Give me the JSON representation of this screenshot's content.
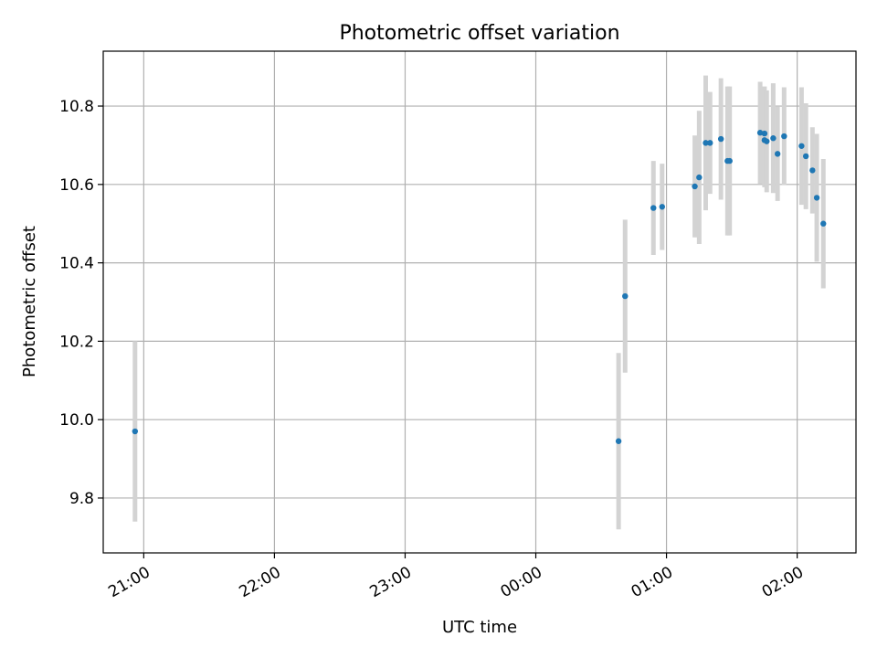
{
  "chart_data": {
    "type": "scatter",
    "title": "Photometric offset variation",
    "xlabel": "UTC time",
    "ylabel": "Photometric offset",
    "x_ticks": [
      "21:00",
      "22:00",
      "23:00",
      "00:00",
      "01:00",
      "02:00"
    ],
    "y_ticks": [
      "9.8",
      "10.0",
      "10.2",
      "10.4",
      "10.6",
      "10.8"
    ],
    "y_tick_values": [
      9.8,
      10.0,
      10.2,
      10.4,
      10.6,
      10.8
    ],
    "x_tick_hours": [
      21,
      22,
      23,
      24,
      25,
      26
    ],
    "xlim_hours": [
      20.69,
      26.45
    ],
    "ylim": [
      9.66,
      10.94
    ],
    "grid": true,
    "marker_color": "#1f77b4",
    "errorbar_color": "#d3d3d3",
    "series": [
      {
        "points": [
          {
            "t": "20:56",
            "y": 9.97,
            "err": 0.23
          },
          {
            "t": "00:38",
            "y": 9.945,
            "err": 0.225
          },
          {
            "t": "00:41",
            "y": 10.315,
            "err": 0.195
          },
          {
            "t": "00:54",
            "y": 10.54,
            "err": 0.12
          },
          {
            "t": "00:58",
            "y": 10.543,
            "err": 0.11
          },
          {
            "t": "01:13",
            "y": 10.595,
            "err": 0.13
          },
          {
            "t": "01:15",
            "y": 10.618,
            "err": 0.17
          },
          {
            "t": "01:18",
            "y": 10.706,
            "err": 0.172
          },
          {
            "t": "01:20",
            "y": 10.706,
            "err": 0.13
          },
          {
            "t": "01:25",
            "y": 10.716,
            "err": 0.155
          },
          {
            "t": "01:28",
            "y": 10.66,
            "err": 0.19
          },
          {
            "t": "01:29",
            "y": 10.66,
            "err": 0.19
          },
          {
            "t": "01:43",
            "y": 10.732,
            "err": 0.13
          },
          {
            "t": "01:45",
            "y": 10.73,
            "err": 0.12
          },
          {
            "t": "01:45",
            "y": 10.713,
            "err": 0.12
          },
          {
            "t": "01:46",
            "y": 10.71,
            "err": 0.13
          },
          {
            "t": "01:49",
            "y": 10.718,
            "err": 0.14
          },
          {
            "t": "01:51",
            "y": 10.678,
            "err": 0.12
          },
          {
            "t": "01:54",
            "y": 10.723,
            "err": 0.125
          },
          {
            "t": "02:02",
            "y": 10.698,
            "err": 0.15
          },
          {
            "t": "02:04",
            "y": 10.672,
            "err": 0.135
          },
          {
            "t": "02:07",
            "y": 10.636,
            "err": 0.11
          },
          {
            "t": "02:09",
            "y": 10.566,
            "err": 0.163
          },
          {
            "t": "02:12",
            "y": 10.5,
            "err": 0.165
          }
        ]
      }
    ]
  }
}
